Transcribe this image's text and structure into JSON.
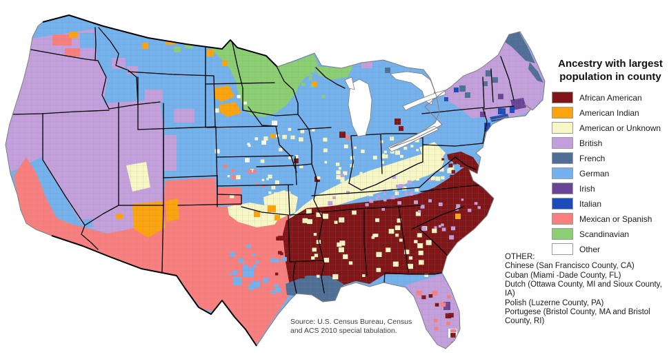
{
  "title": "Ancestry with largest population in county",
  "legend": [
    {
      "key": "african_american",
      "label": "African American",
      "color": "#7f1517"
    },
    {
      "key": "american_indian",
      "label": "American Indian",
      "color": "#fca40d"
    },
    {
      "key": "american_unknown",
      "label": "American or Unknown",
      "color": "#f7f7c5"
    },
    {
      "key": "british",
      "label": "British",
      "color": "#c3a0dc"
    },
    {
      "key": "french",
      "label": "French",
      "color": "#4f6f97"
    },
    {
      "key": "german",
      "label": "German",
      "color": "#73b2ec"
    },
    {
      "key": "irish",
      "label": "Irish",
      "color": "#6a4596"
    },
    {
      "key": "italian",
      "label": "Italian",
      "color": "#1c4cba"
    },
    {
      "key": "mexican_spanish",
      "label": "Mexican or Spanish",
      "color": "#f97f7f"
    },
    {
      "key": "scandinavian",
      "label": "Scandinavian",
      "color": "#8bcf72"
    },
    {
      "key": "other",
      "label": "Other",
      "color": "#ffffff"
    }
  ],
  "other_note": {
    "heading": "OTHER:",
    "lines": [
      "Chinese (San Francisco County, CA)",
      "Cuban (Miami -Dade County, FL)",
      "Dutch (Ottawa County, MI and Sioux County, IA)",
      "Polish (Luzerne County, PA)",
      "Portugese (Bristol County, MA and Bristol County, RI)"
    ]
  },
  "source": "Source: U.S. Census Bureau, Census and ACS 2010 special tabulation.",
  "map": {
    "background": "#ffffff",
    "state_border_color": "#000000",
    "coast_color": "#7d7d7d",
    "county_line_color": "#8a8a8a"
  }
}
